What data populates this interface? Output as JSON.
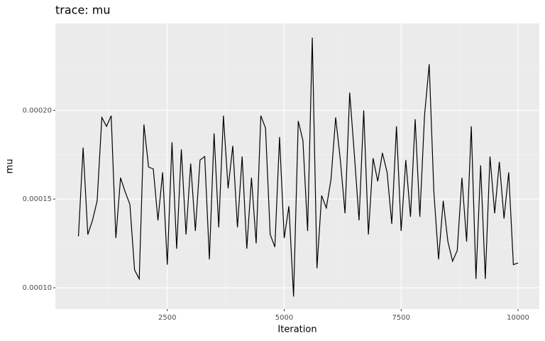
{
  "chart_data": {
    "type": "line",
    "title": "trace: mu",
    "x_label": "Iteration",
    "y_label": "mu",
    "x": [
      600,
      700,
      800,
      900,
      1000,
      1100,
      1200,
      1300,
      1400,
      1500,
      1600,
      1700,
      1800,
      1900,
      2000,
      2100,
      2200,
      2300,
      2400,
      2500,
      2600,
      2700,
      2800,
      2900,
      3000,
      3100,
      3200,
      3300,
      3400,
      3500,
      3600,
      3700,
      3800,
      3900,
      4000,
      4100,
      4200,
      4300,
      4400,
      4500,
      4600,
      4700,
      4800,
      4900,
      5000,
      5100,
      5200,
      5300,
      5400,
      5500,
      5600,
      5700,
      5800,
      5900,
      6000,
      6100,
      6200,
      6300,
      6400,
      6500,
      6600,
      6700,
      6800,
      6900,
      7000,
      7100,
      7200,
      7300,
      7400,
      7500,
      7600,
      7700,
      7800,
      7900,
      8000,
      8100,
      8200,
      8300,
      8400,
      8500,
      8600,
      8700,
      8800,
      8900,
      9000,
      9100,
      9200,
      9300,
      9400,
      9500,
      9600,
      9700,
      9800,
      9900,
      10000
    ],
    "series": [
      {
        "name": "mu",
        "color": "#000000",
        "values": [
          0.000129,
          0.000179,
          0.00013,
          0.000138,
          0.000149,
          0.000196,
          0.000191,
          0.000197,
          0.000128,
          0.000162,
          0.000154,
          0.000147,
          0.00011,
          0.000105,
          0.000192,
          0.000168,
          0.000167,
          0.000138,
          0.000165,
          0.000113,
          0.000182,
          0.000122,
          0.000178,
          0.00013,
          0.00017,
          0.000132,
          0.000172,
          0.000174,
          0.000116,
          0.000187,
          0.000134,
          0.000197,
          0.000156,
          0.00018,
          0.000134,
          0.000174,
          0.000122,
          0.000162,
          0.000125,
          0.000197,
          0.00019,
          0.00013,
          0.000123,
          0.000185,
          0.000128,
          0.000146,
          9.5e-05,
          0.000194,
          0.000183,
          0.000132,
          0.000241,
          0.000111,
          0.000152,
          0.000145,
          0.000161,
          0.000196,
          0.000172,
          0.000142,
          0.00021,
          0.000175,
          0.000138,
          0.0002,
          0.00013,
          0.000173,
          0.00016,
          0.000176,
          0.000165,
          0.000136,
          0.000191,
          0.000132,
          0.000172,
          0.00014,
          0.000195,
          0.00014,
          0.000197,
          0.000226,
          0.000154,
          0.000116,
          0.000149,
          0.000126,
          0.000115,
          0.000121,
          0.000162,
          0.000126,
          0.000191,
          0.000105,
          0.000169,
          0.000105,
          0.000174,
          0.000142,
          0.000171,
          0.000139,
          0.000165,
          0.000113,
          0.000114
        ]
      }
    ],
    "xlim": [
      106,
      10455
    ],
    "ylim": [
      8.8e-05,
      0.000249
    ],
    "xticks": [
      2500,
      5000,
      7500,
      10000
    ],
    "yticks": [
      {
        "value": 0.0001,
        "label": "0.00010"
      },
      {
        "value": 0.00015,
        "label": "0.00015"
      },
      {
        "value": 0.0002,
        "label": "0.00020"
      }
    ],
    "grid": true
  }
}
